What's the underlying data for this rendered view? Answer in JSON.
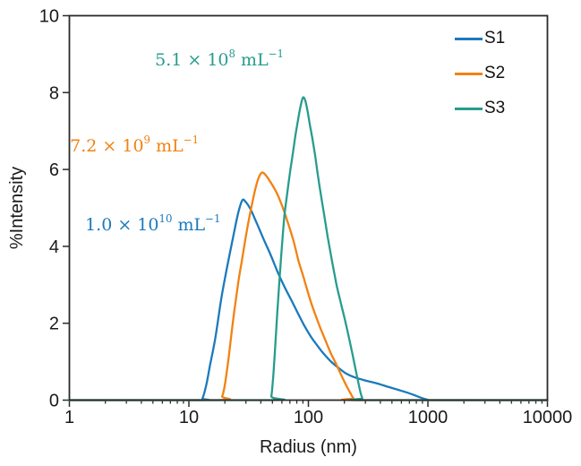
{
  "chart_data": {
    "type": "line",
    "title": "",
    "xlabel": "Radius (nm)",
    "ylabel": "%Intensity",
    "x_scale": "log",
    "xlim": [
      1,
      10000
    ],
    "ylim": [
      0,
      10
    ],
    "x_major_ticks": [
      1,
      10,
      100,
      1000,
      10000
    ],
    "x_tick_labels": [
      "1",
      "10",
      "100",
      "1000",
      "10000"
    ],
    "y_major_ticks": [
      0,
      2,
      4,
      6,
      8,
      10
    ],
    "grid": false,
    "legend_position": "top-right-inside",
    "frame_color": "#2b2b2b",
    "series": [
      {
        "name": "S1",
        "color": "#1b7abc",
        "annotation": {
          "base": "1.0 × 10",
          "exp": "10",
          "unit": " mL",
          "unit_exp": "−1",
          "x": 5.0,
          "y": 4.55
        },
        "points": [
          [
            1,
            0
          ],
          [
            12,
            0
          ],
          [
            13,
            0.05
          ],
          [
            14,
            0.4
          ],
          [
            15,
            0.9
          ],
          [
            16.6,
            1.6
          ],
          [
            18.8,
            2.7
          ],
          [
            21,
            3.5
          ],
          [
            24,
            4.4
          ],
          [
            26,
            4.9
          ],
          [
            28,
            5.2
          ],
          [
            30,
            5.15
          ],
          [
            33,
            4.95
          ],
          [
            37,
            4.6
          ],
          [
            42,
            4.2
          ],
          [
            48,
            3.8
          ],
          [
            55,
            3.35
          ],
          [
            63,
            2.95
          ],
          [
            72,
            2.6
          ],
          [
            82,
            2.25
          ],
          [
            93,
            1.92
          ],
          [
            105,
            1.65
          ],
          [
            120,
            1.4
          ],
          [
            135,
            1.2
          ],
          [
            155,
            1.0
          ],
          [
            180,
            0.83
          ],
          [
            210,
            0.68
          ],
          [
            250,
            0.58
          ],
          [
            300,
            0.51
          ],
          [
            370,
            0.44
          ],
          [
            450,
            0.36
          ],
          [
            560,
            0.27
          ],
          [
            680,
            0.19
          ],
          [
            800,
            0.11
          ],
          [
            900,
            0.05
          ],
          [
            1000,
            0.01
          ],
          [
            1100,
            0
          ],
          [
            10000,
            0
          ]
        ]
      },
      {
        "name": "S2",
        "color": "#f28211",
        "annotation": {
          "base": "7.2 × 10",
          "exp": "9",
          "unit": " mL",
          "unit_exp": "−1",
          "x": 3.5,
          "y": 6.6
        },
        "points": [
          [
            1,
            0
          ],
          [
            17.5,
            0
          ],
          [
            19,
            0.1
          ],
          [
            20,
            0.4
          ],
          [
            21.5,
            1.1
          ],
          [
            23.5,
            2.1
          ],
          [
            26,
            3.1
          ],
          [
            28,
            3.7
          ],
          [
            30.5,
            4.4
          ],
          [
            33,
            4.95
          ],
          [
            36,
            5.5
          ],
          [
            38.5,
            5.8
          ],
          [
            41,
            5.92
          ],
          [
            44,
            5.85
          ],
          [
            48,
            5.68
          ],
          [
            52,
            5.5
          ],
          [
            56,
            5.3
          ],
          [
            62,
            4.95
          ],
          [
            66,
            4.7
          ],
          [
            75,
            4.15
          ],
          [
            83,
            3.6
          ],
          [
            90,
            3.25
          ],
          [
            96,
            2.95
          ],
          [
            105,
            2.55
          ],
          [
            115,
            2.2
          ],
          [
            125,
            1.9
          ],
          [
            139,
            1.55
          ],
          [
            155,
            1.2
          ],
          [
            170,
            0.95
          ],
          [
            182,
            0.75
          ],
          [
            195,
            0.55
          ],
          [
            210,
            0.35
          ],
          [
            225,
            0.18
          ],
          [
            238,
            0.05
          ],
          [
            255,
            0
          ],
          [
            10000,
            0
          ]
        ]
      },
      {
        "name": "S3",
        "color": "#279c8e",
        "annotation": {
          "base": "5.1 × 10",
          "exp": "8",
          "unit": " mL",
          "unit_exp": "−1",
          "x": 18.0,
          "y": 8.85
        },
        "points": [
          [
            1,
            0
          ],
          [
            47,
            0
          ],
          [
            49,
            0.1
          ],
          [
            51,
            0.7
          ],
          [
            53,
            1.5
          ],
          [
            55,
            2.3
          ],
          [
            57.5,
            3.2
          ],
          [
            60,
            4.0
          ],
          [
            63,
            4.8
          ],
          [
            66,
            5.3
          ],
          [
            70,
            5.9
          ],
          [
            74,
            6.4
          ],
          [
            78,
            6.9
          ],
          [
            82,
            7.3
          ],
          [
            86,
            7.65
          ],
          [
            90,
            7.87
          ],
          [
            94,
            7.8
          ],
          [
            98,
            7.55
          ],
          [
            103,
            7.15
          ],
          [
            108,
            6.8
          ],
          [
            114,
            6.35
          ],
          [
            120,
            5.85
          ],
          [
            127,
            5.35
          ],
          [
            135,
            4.85
          ],
          [
            145,
            4.25
          ],
          [
            158,
            3.6
          ],
          [
            172,
            3.0
          ],
          [
            186,
            2.55
          ],
          [
            200,
            2.15
          ],
          [
            215,
            1.72
          ],
          [
            230,
            1.3
          ],
          [
            245,
            0.88
          ],
          [
            260,
            0.5
          ],
          [
            272,
            0.22
          ],
          [
            283,
            0.05
          ],
          [
            295,
            0
          ],
          [
            10000,
            0
          ]
        ]
      }
    ]
  }
}
